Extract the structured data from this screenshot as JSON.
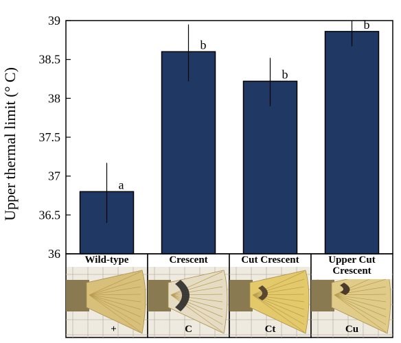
{
  "chart_data": {
    "type": "bar",
    "title": "",
    "xlabel": "",
    "ylabel": "Upper thermal limit (° C)",
    "ylim": [
      36,
      39
    ],
    "yticks": [
      "36",
      "36.5",
      "37",
      "37.5",
      "38",
      "38.5",
      "39"
    ],
    "categories": [
      "Wild-type",
      "Crescent",
      "Cut Crescent",
      "Upper Cut Crescent"
    ],
    "category_lines": [
      [
        "Wild-type"
      ],
      [
        "Crescent"
      ],
      [
        "Cut Crescent"
      ],
      [
        "Upper Cut",
        "Crescent"
      ]
    ],
    "genotype_codes": [
      "+",
      "C",
      "Ct",
      "Cu"
    ],
    "values": [
      36.8,
      38.6,
      38.22,
      38.86
    ],
    "error_high": [
      37.17,
      38.95,
      38.52,
      39.0
    ],
    "error_low": [
      36.4,
      38.22,
      37.9,
      38.67
    ],
    "significance_letters": [
      "a",
      "b",
      "b",
      "b"
    ],
    "bar_color": "#1f3864",
    "grid": false,
    "legend": "none"
  }
}
